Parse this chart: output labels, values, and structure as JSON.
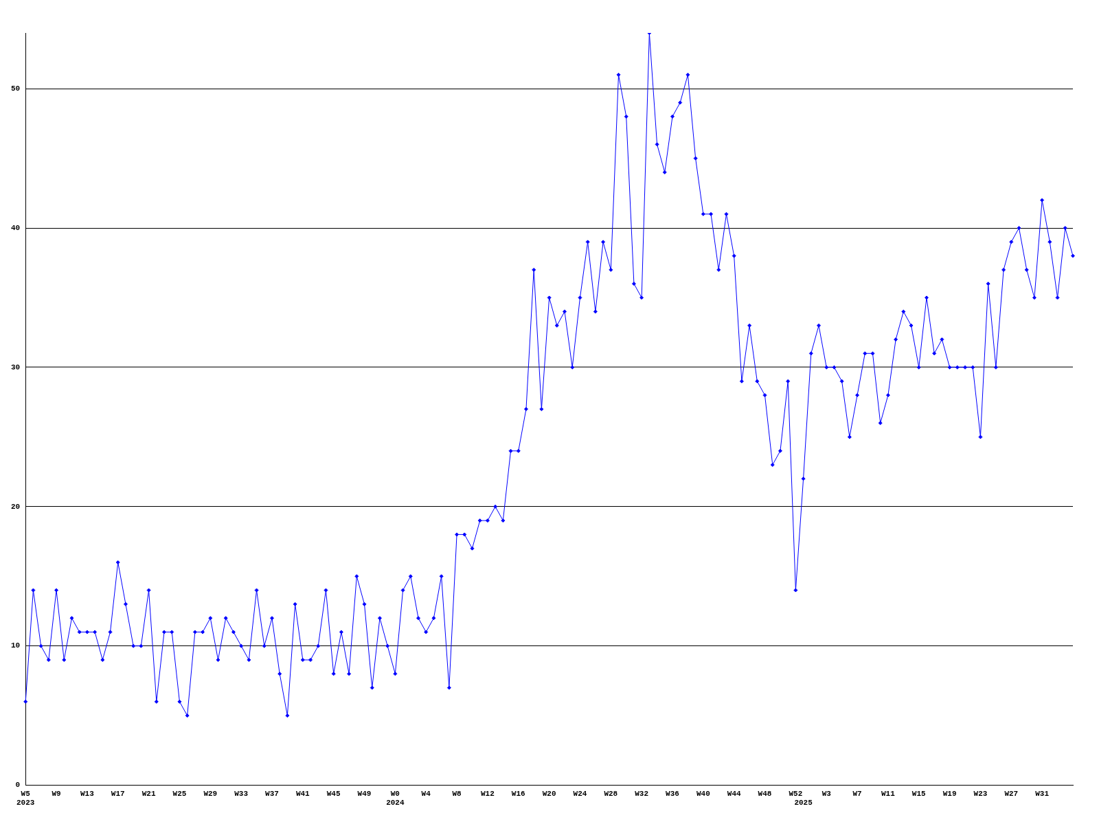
{
  "chart_data": {
    "type": "line",
    "categories": [
      "W5\n2023",
      null,
      null,
      null,
      "W9",
      null,
      null,
      null,
      "W13",
      null,
      null,
      null,
      "W17",
      null,
      null,
      null,
      "W21",
      null,
      null,
      null,
      "W25",
      null,
      null,
      null,
      "W29",
      null,
      null,
      null,
      "W33",
      null,
      null,
      null,
      "W37",
      null,
      null,
      null,
      "W41",
      null,
      null,
      null,
      "W45",
      null,
      null,
      null,
      "W49",
      null,
      null,
      null,
      "W0\n2024",
      null,
      null,
      null,
      "W4",
      null,
      null,
      null,
      "W8",
      null,
      null,
      null,
      "W12",
      null,
      null,
      null,
      "W16",
      null,
      null,
      null,
      "W20",
      null,
      null,
      null,
      "W24",
      null,
      null,
      null,
      "W28",
      null,
      null,
      null,
      "W32",
      null,
      null,
      null,
      "W36",
      null,
      null,
      null,
      "W40",
      null,
      null,
      null,
      "W44",
      null,
      null,
      null,
      "W48",
      null,
      null,
      null,
      "W52",
      "\n2025",
      null,
      null,
      "W3",
      null,
      null,
      null,
      "W7",
      null,
      null,
      null,
      "W11",
      null,
      null,
      null,
      "W15",
      null,
      null,
      null,
      "W19",
      null,
      null,
      null,
      "W23",
      null,
      null,
      null,
      "W27",
      null,
      null,
      null,
      "W31",
      null,
      null,
      null,
      null
    ],
    "values": [
      6,
      14,
      10,
      9,
      14,
      9,
      12,
      11,
      11,
      11,
      9,
      11,
      16,
      13,
      10,
      10,
      14,
      6,
      11,
      11,
      6,
      5,
      11,
      11,
      12,
      9,
      12,
      11,
      10,
      9,
      14,
      10,
      12,
      8,
      5,
      13,
      9,
      9,
      10,
      14,
      8,
      11,
      8,
      15,
      13,
      7,
      12,
      10,
      8,
      14,
      15,
      12,
      11,
      12,
      15,
      7,
      18,
      18,
      17,
      19,
      19,
      20,
      19,
      24,
      24,
      27,
      37,
      27,
      35,
      33,
      34,
      30,
      35,
      39,
      34,
      39,
      37,
      51,
      48,
      36,
      35,
      54,
      46,
      44,
      48,
      49,
      51,
      45,
      41,
      41,
      37,
      41,
      38,
      29,
      33,
      29,
      28,
      23,
      24,
      29,
      14,
      22,
      31,
      33,
      30,
      30,
      29,
      25,
      28,
      31,
      31,
      26,
      28,
      32,
      34,
      33,
      30,
      35,
      31,
      32,
      30,
      30,
      30,
      30,
      25,
      36,
      30,
      37,
      39,
      40,
      37,
      35,
      42,
      39,
      35,
      40,
      38
    ],
    "color": "#0000ff",
    "ylim": [
      0,
      54
    ],
    "yticks": [
      0,
      10,
      20,
      30,
      40,
      50
    ],
    "grid": "y",
    "marker": "diamond",
    "line_style": "solid"
  }
}
